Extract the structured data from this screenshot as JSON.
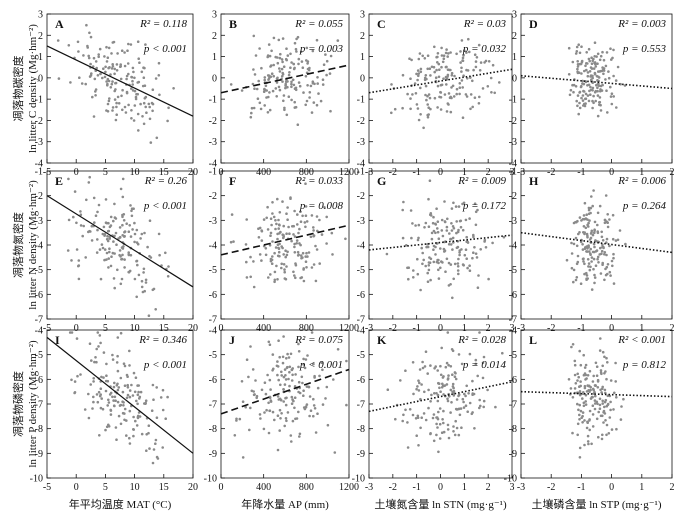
{
  "chart_data": {
    "type": "scatter",
    "rows": [
      {
        "ylabel_cn": "凋落物碳密度",
        "ylabel": "ln litter C density (Mg·hm⁻²)",
        "ylim": [
          -4,
          3
        ],
        "yticks": [
          "-4",
          "-3",
          "-2",
          "-1",
          "0",
          "1",
          "2",
          "3"
        ]
      },
      {
        "ylabel_cn": "凋落物氮密度",
        "ylabel": "ln litter N density (Mg·hm⁻²)",
        "ylim": [
          -7,
          -1
        ],
        "yticks": [
          "-7",
          "-6",
          "-5",
          "-4",
          "-3",
          "-2",
          "-1"
        ]
      },
      {
        "ylabel_cn": "凋落物磷密度",
        "ylabel": "ln litter P density (Mg·hm⁻²)",
        "ylim": [
          -10,
          -4
        ],
        "yticks": [
          "-10",
          "-9",
          "-8",
          "-7",
          "-6",
          "-5",
          "-4"
        ]
      }
    ],
    "columns": [
      {
        "xlabel": "年平均温度 MAT (°C)",
        "xlim": [
          -5,
          20
        ],
        "xticks": [
          "-5",
          "0",
          "5",
          "10",
          "15",
          "20"
        ],
        "xtick_values": [
          -5,
          0,
          5,
          10,
          15,
          20
        ],
        "center": [
          7.5,
          4
        ],
        "style": "solid"
      },
      {
        "xlabel": "年降水量 AP (mm)",
        "xlim": [
          0,
          1200
        ],
        "xticks": [
          "0",
          "400",
          "800",
          "1200"
        ],
        "xtick_values": [
          0,
          400,
          800,
          1200
        ],
        "center": [
          600,
          200
        ],
        "style": "dashed"
      },
      {
        "xlabel": "土壤氮含量 ln STN (mg·g⁻¹)",
        "xlim": [
          -3,
          3
        ],
        "xticks": [
          "-3",
          "-2",
          "-1",
          "0",
          "1",
          "2",
          "3"
        ],
        "xtick_values": [
          -3,
          -2,
          -1,
          0,
          1,
          2,
          3
        ],
        "center": [
          0.2,
          0.9
        ],
        "style": "dotted"
      },
      {
        "xlabel": "土壤磷含量 ln STP (mg·g⁻¹)",
        "xlim": [
          -3,
          2
        ],
        "xticks": [
          "-3",
          "-2",
          "-1",
          "0",
          "1",
          "2"
        ],
        "xtick_values": [
          -3,
          -2,
          -1,
          0,
          1,
          2
        ],
        "center": [
          -0.6,
          0.4
        ],
        "style": "dotted"
      }
    ],
    "panels": [
      {
        "label": "A",
        "r2": "R² = 0.118",
        "p": "p < 0.001",
        "line": [
          [
            -5,
            1.5
          ],
          [
            20,
            -1.8
          ]
        ],
        "y_center": -0.2,
        "y_spread": 0.9
      },
      {
        "label": "B",
        "r2": "R² = 0.055",
        "p": "p = 0.003",
        "line": [
          [
            0,
            -0.7
          ],
          [
            1200,
            0.6
          ]
        ],
        "y_center": -0.1,
        "y_spread": 0.9
      },
      {
        "label": "C",
        "r2": "R² = 0.03",
        "p": "p = 0.032",
        "line": [
          [
            -3,
            -0.7
          ],
          [
            3,
            0.4
          ]
        ],
        "y_center": -0.1,
        "y_spread": 0.9
      },
      {
        "label": "D",
        "r2": "R² = 0.003",
        "p": "p = 0.553",
        "line": [
          [
            -3,
            0.1
          ],
          [
            2,
            -0.5
          ]
        ],
        "y_center": -0.1,
        "y_spread": 0.9
      },
      {
        "label": "E",
        "r2": "R² = 0.26",
        "p": "p < 0.001",
        "line": [
          [
            -5,
            -2.0
          ],
          [
            20,
            -5.7
          ]
        ],
        "y_center": -3.9,
        "y_spread": 0.9
      },
      {
        "label": "F",
        "r2": "R² = 0.033",
        "p": "p = 0.008",
        "line": [
          [
            0,
            -4.4
          ],
          [
            1200,
            -3.2
          ]
        ],
        "y_center": -3.9,
        "y_spread": 0.9
      },
      {
        "label": "G",
        "r2": "R² = 0.009",
        "p": "p = 0.172",
        "line": [
          [
            -3,
            -4.2
          ],
          [
            3,
            -3.6
          ]
        ],
        "y_center": -3.9,
        "y_spread": 0.9
      },
      {
        "label": "H",
        "r2": "R² = 0.006",
        "p": "p = 0.264",
        "line": [
          [
            -3,
            -3.5
          ],
          [
            2,
            -4.3
          ]
        ],
        "y_center": -3.9,
        "y_spread": 0.9
      },
      {
        "label": "I",
        "r2": "R² = 0.346",
        "p": "p < 0.001",
        "line": [
          [
            -5,
            -4.3
          ],
          [
            20,
            -9.0
          ]
        ],
        "y_center": -6.6,
        "y_spread": 1.0
      },
      {
        "label": "J",
        "r2": "R² = 0.075",
        "p": "p < 0.001",
        "line": [
          [
            0,
            -7.4
          ],
          [
            1200,
            -5.6
          ]
        ],
        "y_center": -6.5,
        "y_spread": 1.0
      },
      {
        "label": "K",
        "r2": "R² = 0.028",
        "p": "p = 0.014",
        "line": [
          [
            -3,
            -7.3
          ],
          [
            3,
            -6.1
          ]
        ],
        "y_center": -6.6,
        "y_spread": 1.0
      },
      {
        "label": "L",
        "r2": "R² < 0.001",
        "p": "p = 0.812",
        "line": [
          [
            -3,
            -6.5
          ],
          [
            2,
            -6.7
          ]
        ],
        "y_center": -6.6,
        "y_spread": 1.0
      }
    ]
  }
}
